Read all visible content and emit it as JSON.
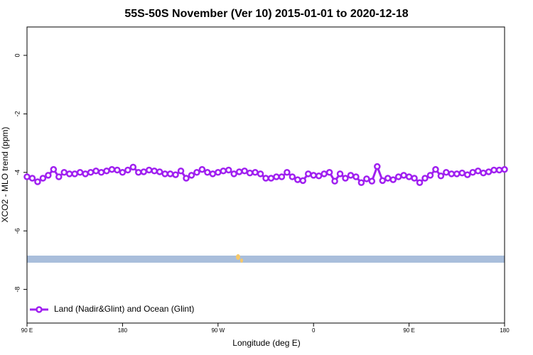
{
  "chart_data": {
    "type": "line",
    "title": "55S-50S November (Ver 10)   2015-01-01 to 2020-12-18",
    "x_label": "Longitude (deg E)",
    "y_label": "XCO2 - MLO trend (ppm)",
    "xlim": [
      90,
      540
    ],
    "ylim": [
      -9.15,
      0.97
    ],
    "xticks": [
      {
        "value": 90,
        "label": "90 E"
      },
      {
        "value": 180,
        "label": "180"
      },
      {
        "value": 270,
        "label": "90 W"
      },
      {
        "value": 360,
        "label": "0"
      },
      {
        "value": 450,
        "label": "90 E"
      },
      {
        "value": 540,
        "label": "180"
      }
    ],
    "yticks": [
      0,
      -2,
      -4,
      -6,
      -8
    ],
    "legend": "bottomleft",
    "x": [
      90,
      95,
      100,
      105,
      110,
      115,
      120,
      125,
      130,
      135,
      140,
      145,
      150,
      155,
      160,
      165,
      170,
      175,
      180,
      185,
      190,
      195,
      200,
      205,
      210,
      215,
      220,
      225,
      230,
      235,
      240,
      245,
      250,
      255,
      260,
      265,
      270,
      275,
      280,
      285,
      290,
      295,
      300,
      305,
      310,
      315,
      320,
      325,
      330,
      335,
      340,
      345,
      350,
      355,
      360,
      365,
      370,
      375,
      380,
      385,
      390,
      395,
      400,
      405,
      410,
      415,
      420,
      425,
      430,
      435,
      440,
      445,
      450,
      455,
      460,
      465,
      470,
      475,
      480,
      485,
      490,
      495,
      500,
      505,
      510,
      515,
      520,
      525,
      530,
      535,
      540
    ],
    "series": [
      {
        "name": "Land (Nadir&Glint) and Ocean (Glint)",
        "color": "#a020f0",
        "values": [
          -4.15,
          -4.2,
          -4.32,
          -4.2,
          -4.1,
          -3.9,
          -4.15,
          -4.0,
          -4.05,
          -4.05,
          -4.0,
          -4.05,
          -4.0,
          -3.95,
          -4.0,
          -3.95,
          -3.9,
          -3.92,
          -4.0,
          -3.92,
          -3.82,
          -4.0,
          -3.98,
          -3.92,
          -3.95,
          -3.98,
          -4.05,
          -4.05,
          -4.08,
          -3.95,
          -4.2,
          -4.1,
          -4.0,
          -3.9,
          -4.0,
          -4.05,
          -4.0,
          -3.95,
          -3.92,
          -4.05,
          -3.98,
          -3.95,
          -4.02,
          -4.0,
          -4.05,
          -4.2,
          -4.2,
          -4.15,
          -4.15,
          -4.0,
          -4.15,
          -4.25,
          -4.28,
          -4.05,
          -4.1,
          -4.12,
          -4.05,
          -4.0,
          -4.3,
          -4.05,
          -4.2,
          -4.1,
          -4.15,
          -4.35,
          -4.22,
          -4.3,
          -3.8,
          -4.28,
          -4.2,
          -4.25,
          -4.15,
          -4.1,
          -4.15,
          -4.2,
          -4.35,
          -4.2,
          -4.1,
          -3.9,
          -4.12,
          -4.0,
          -4.05,
          -4.05,
          -4.02,
          -4.08,
          -4.0,
          -3.95,
          -4.02,
          -3.98,
          -3.92,
          -3.92,
          -3.9
        ]
      }
    ]
  }
}
